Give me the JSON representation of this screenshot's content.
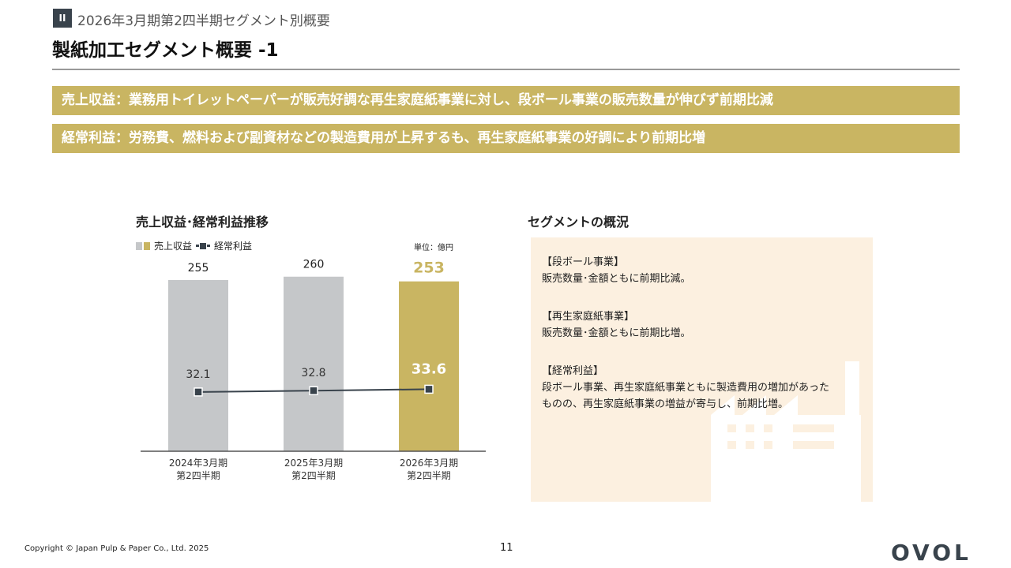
{
  "header": {
    "badge": "II",
    "section": "2026年3月期第2四半期セグメント別概要",
    "title": "製紙加工セグメント概要 -1"
  },
  "banners": [
    "売上収益：業務用トイレットペーパーが販売好調な再生家庭紙事業に対し、段ボール事業の販売数量が伸びず前期比減",
    "経常利益：労務費、燃料および副資材などの製造費用が上昇するも、再生家庭紙事業の好調により前期比増"
  ],
  "chart_data": {
    "type": "bar+line",
    "title": "売上収益･経常利益推移",
    "unit": "単位：億円",
    "categories": [
      "2024年3月期\n第2四半期",
      "2025年3月期\n第2四半期",
      "2026年3月期\n第2四半期"
    ],
    "category_lines": [
      [
        "2024年3月期",
        "第2四半期"
      ],
      [
        "2025年3月期",
        "第2四半期"
      ],
      [
        "2026年3月期",
        "第2四半期"
      ]
    ],
    "series": [
      {
        "name": "売上収益",
        "type": "bar",
        "values": [
          255,
          260,
          253
        ],
        "colors": [
          "#c5c7c9",
          "#c5c7c9",
          "#c9b562"
        ]
      },
      {
        "name": "経常利益",
        "type": "line",
        "values": [
          32.1,
          32.8,
          33.6
        ],
        "color": "#39434c"
      }
    ],
    "legend": "top-left",
    "grid": false
  },
  "segment": {
    "title": "セグメントの概況",
    "blocks": [
      {
        "head": "【段ボール事業】",
        "body": "販売数量･金額ともに前期比減。"
      },
      {
        "head": "【再生家庭紙事業】",
        "body": "販売数量･金額ともに前期比増。"
      },
      {
        "head": "【経常利益】",
        "body": "段ボール事業、再生家庭紙事業ともに製造費用の増加があった",
        "body2": "ものの、再生家庭紙事業の増益が寄与し、前期比増。"
      }
    ]
  },
  "footer": {
    "copyright": "Copyright © Japan Pulp & Paper Co., Ltd. 2025",
    "page": "11",
    "logo": "OVOL"
  },
  "colors": {
    "gold": "#c9b562",
    "gray": "#c5c7c9",
    "dark": "#39434c",
    "panel": "#fcf0e0"
  }
}
